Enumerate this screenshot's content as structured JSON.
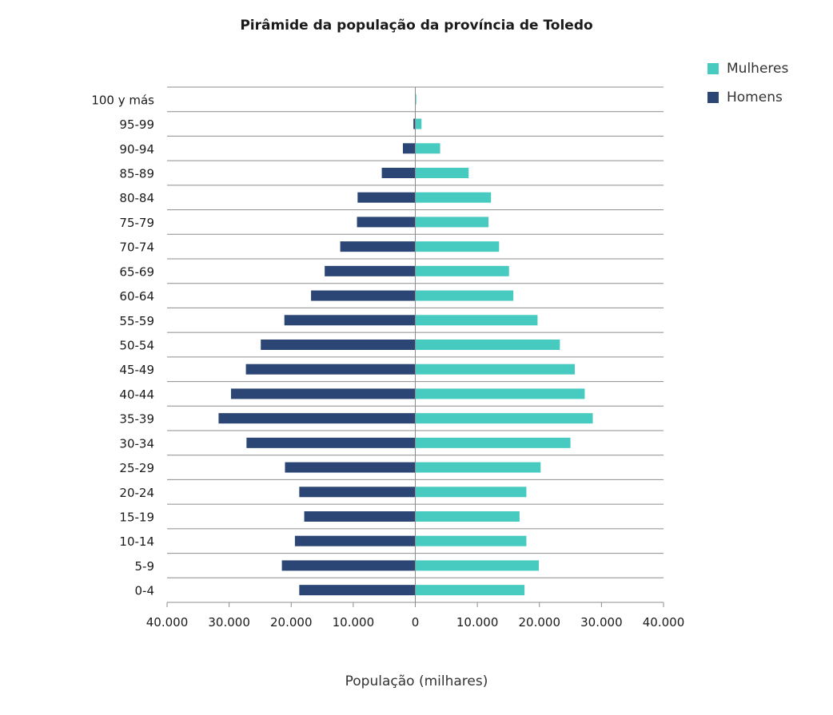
{
  "chart_data": {
    "type": "bar",
    "orientation": "horizontal",
    "title": "Pirâmide da população da província de Toledo",
    "xlabel": "População (milhares)",
    "ylabel": "",
    "categories": [
      "100 y más",
      "95-99",
      "90-94",
      "85-89",
      "80-84",
      "75-79",
      "70-74",
      "65-69",
      "60-64",
      "55-59",
      "50-54",
      "45-49",
      "40-44",
      "35-39",
      "30-34",
      "25-29",
      "20-24",
      "15-19",
      "10-14",
      "5-9",
      "0-4"
    ],
    "series": [
      {
        "name": "Mulheres",
        "color": "#47cbc0",
        "side": "right",
        "values": [
          150,
          1000,
          4000,
          8600,
          12200,
          11800,
          13500,
          15100,
          15800,
          19700,
          23300,
          25700,
          27300,
          28600,
          25000,
          20200,
          17900,
          16800,
          17900,
          19900,
          17600
        ]
      },
      {
        "name": "Homens",
        "color": "#2b4675",
        "side": "left",
        "values": [
          50,
          300,
          2000,
          5400,
          9300,
          9400,
          12100,
          14600,
          16800,
          21100,
          24900,
          27300,
          29700,
          31700,
          27200,
          21000,
          18700,
          17900,
          19400,
          21500,
          18700
        ]
      }
    ],
    "xlim": [
      -40000,
      40000
    ],
    "xticks": [
      -40000,
      -30000,
      -20000,
      -10000,
      0,
      10000,
      20000,
      30000,
      40000
    ],
    "xtick_labels": [
      "40.000",
      "30.000",
      "20.000",
      "10.000",
      "0",
      "10.000",
      "20.000",
      "30.000",
      "40.000"
    ],
    "grid": "horizontal",
    "legend_position": "top-right"
  },
  "legend": {
    "mulheres": "Mulheres",
    "homens": "Homens"
  }
}
